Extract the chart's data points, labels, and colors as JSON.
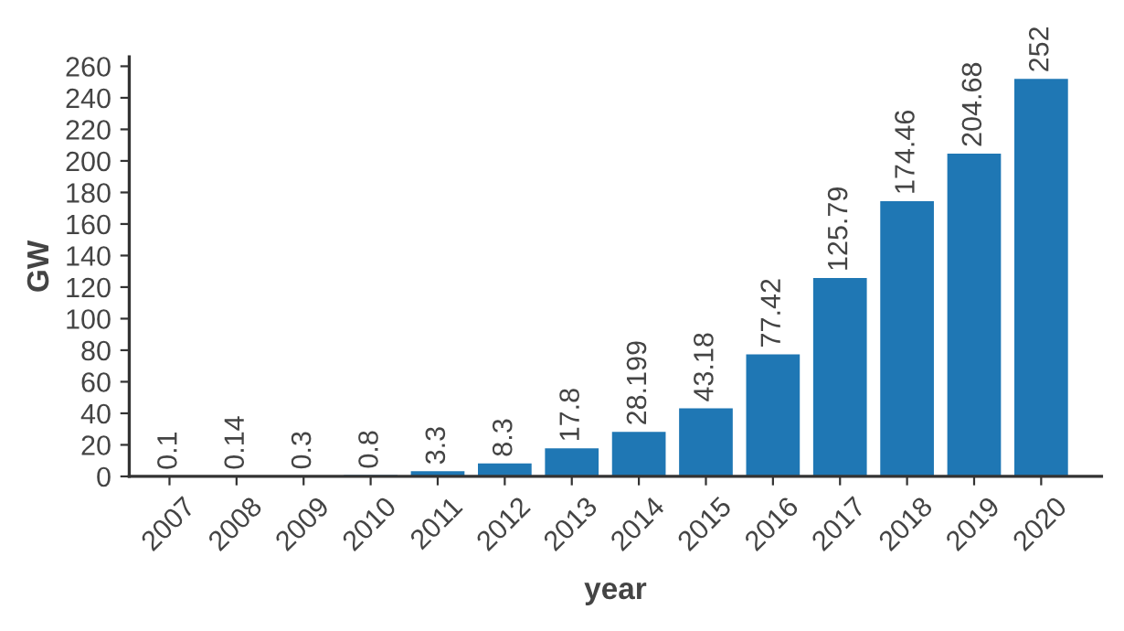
{
  "chart_data": {
    "type": "bar",
    "xlabel": "year",
    "ylabel": "GW",
    "categories": [
      "2007",
      "2008",
      "2009",
      "2010",
      "2011",
      "2012",
      "2013",
      "2014",
      "2015",
      "2016",
      "2017",
      "2018",
      "2019",
      "2020"
    ],
    "values": [
      0.1,
      0.14,
      0.3,
      0.8,
      3.3,
      8.3,
      17.8,
      28.199,
      43.18,
      77.42,
      125.79,
      174.46,
      204.68,
      252
    ],
    "color": "#1f77b4",
    "ylim": [
      0,
      266
    ],
    "yticks": [
      0,
      20,
      40,
      60,
      80,
      100,
      120,
      140,
      160,
      180,
      200,
      220,
      240,
      260
    ],
    "grid": false,
    "data_labels": true
  }
}
